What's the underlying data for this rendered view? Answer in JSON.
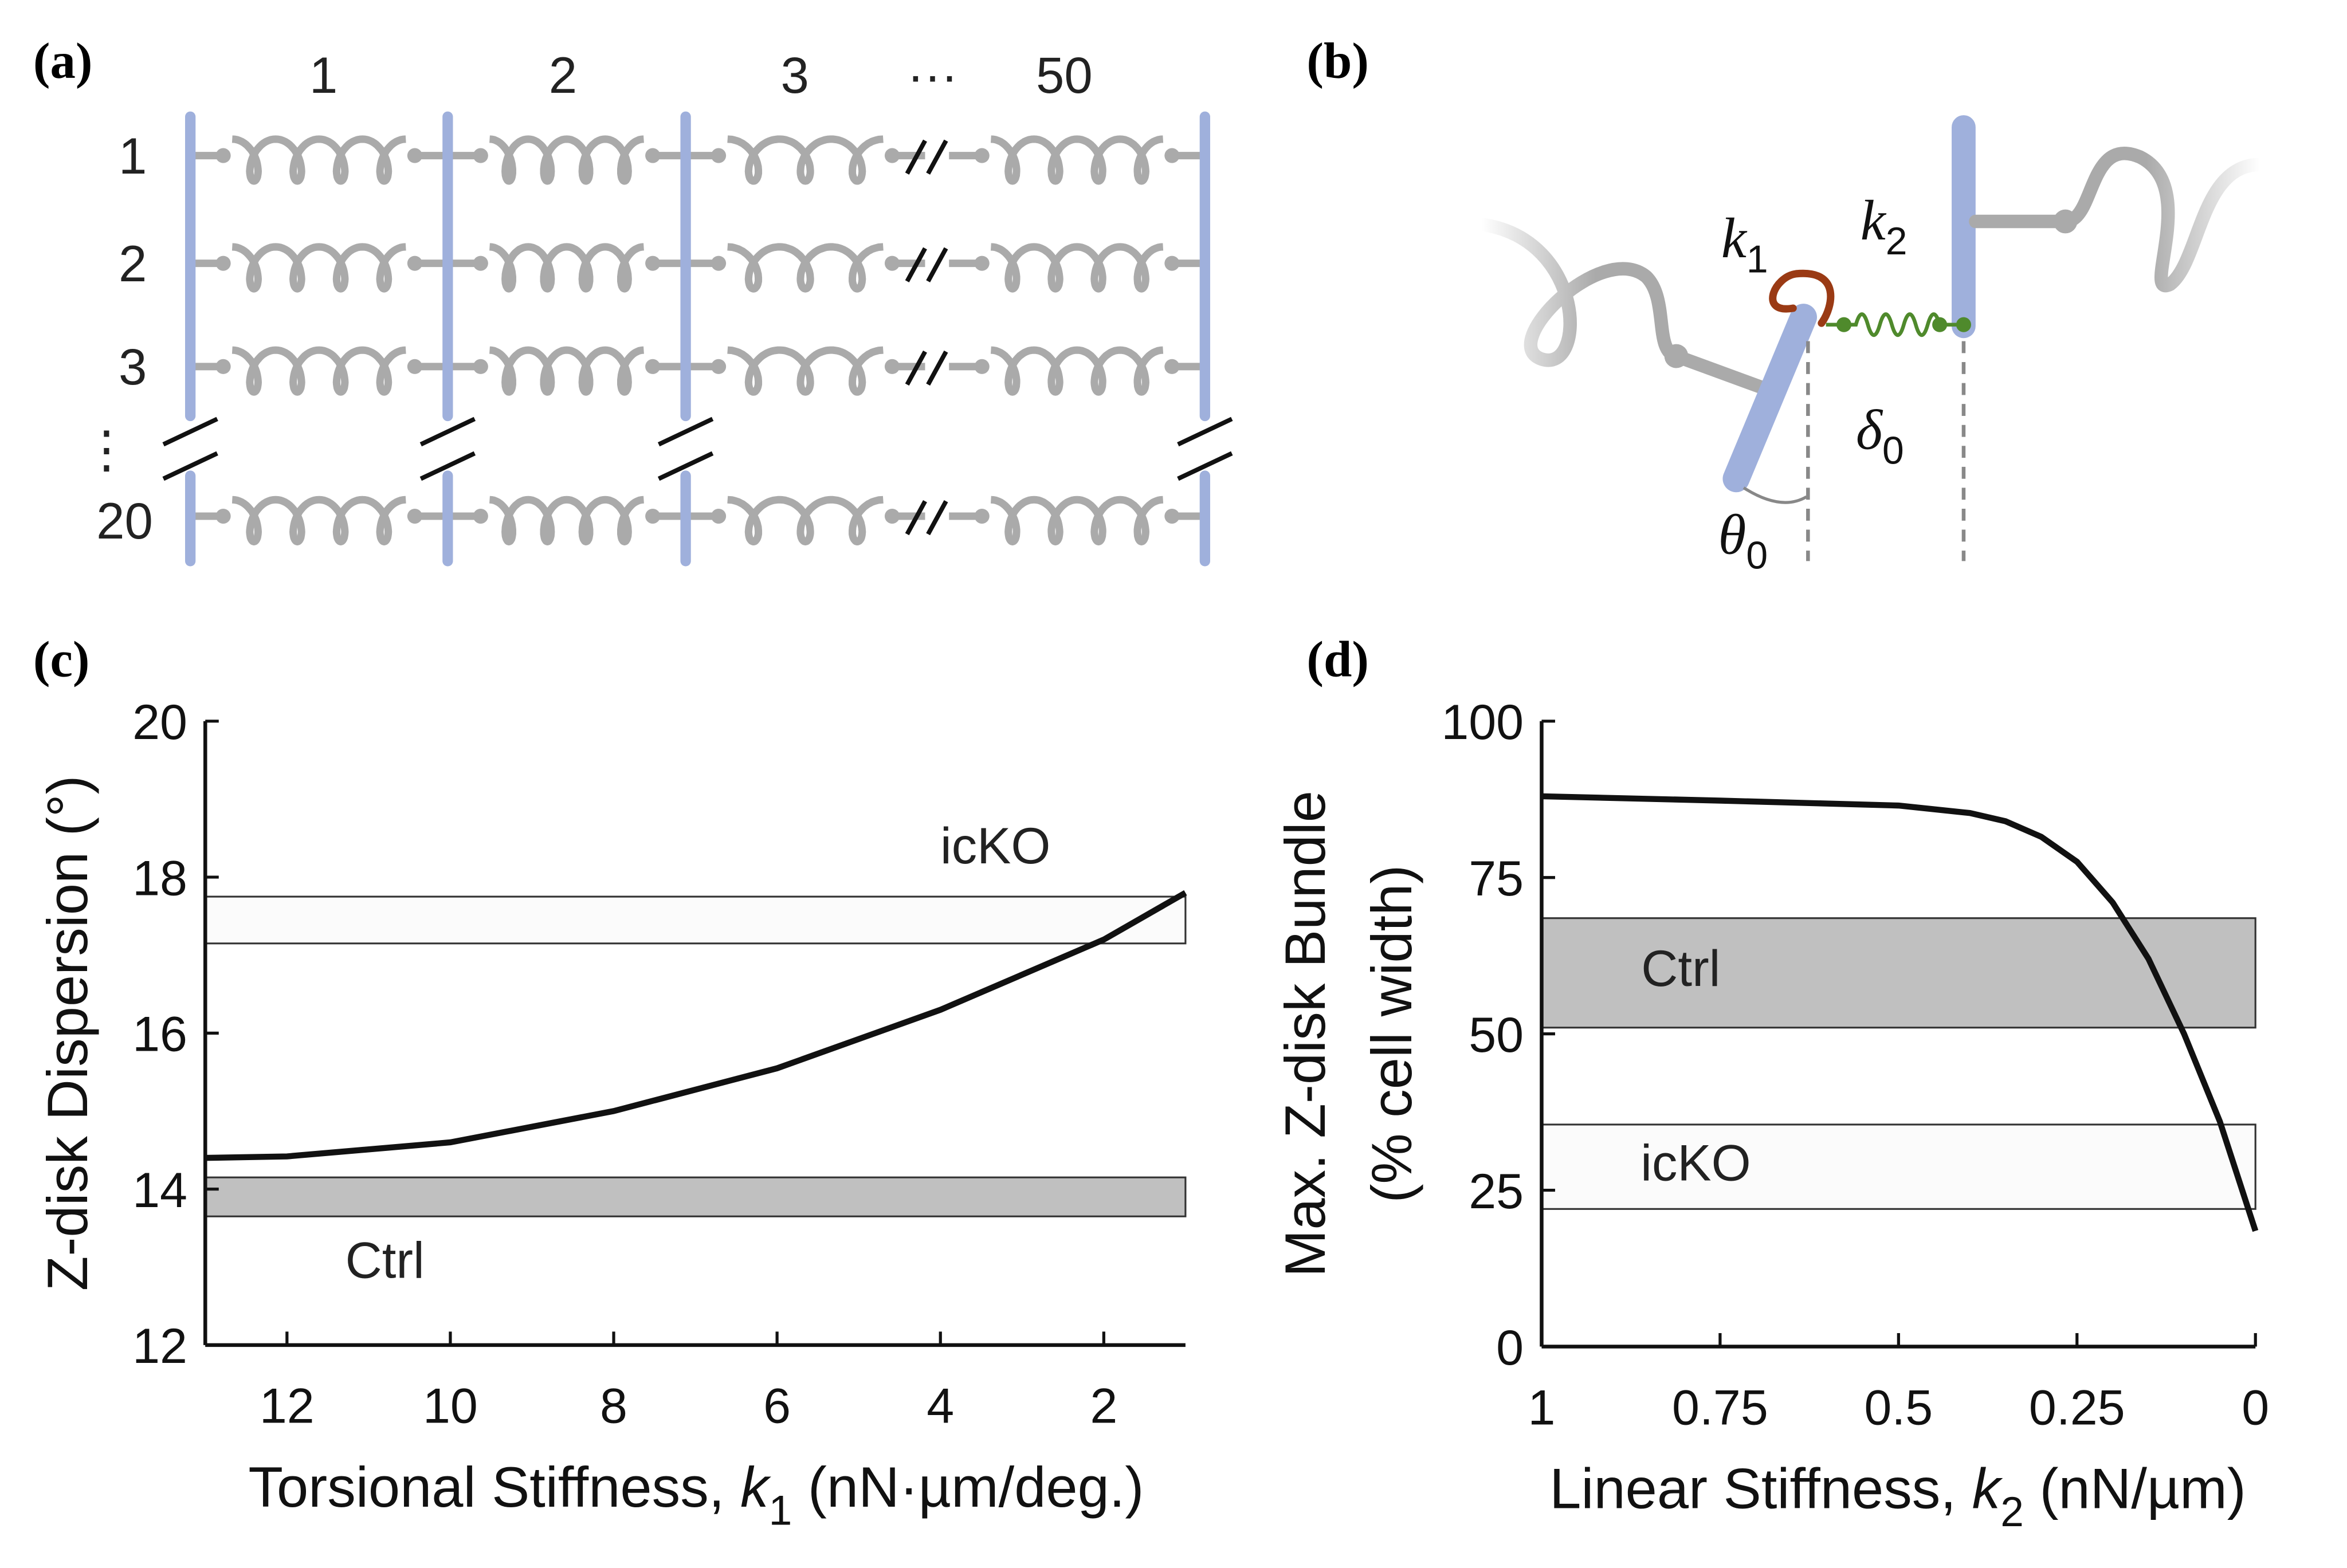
{
  "panels": {
    "a": "(a)",
    "b": "(b)",
    "c": "(c)",
    "d": "(d)"
  },
  "diagram_a": {
    "columns": [
      "1",
      "2",
      "3",
      "···",
      "50"
    ],
    "rows": [
      "1",
      "2",
      "3",
      "⋮",
      "20"
    ]
  },
  "diagram_b": {
    "labels": [
      {
        "symbol": "k",
        "sub": "1"
      },
      {
        "symbol": "k",
        "sub": "2"
      },
      {
        "symbol": "δ",
        "sub": "0"
      },
      {
        "symbol": "θ",
        "sub": "0"
      }
    ]
  },
  "chart_data": [
    {
      "type": "line",
      "ylabel": "Z-disk Dispersion (°)",
      "xlabel": [
        "Torsional Stiffness, ",
        "k",
        "1",
        " (nN·µm/deg.)"
      ],
      "x": [
        13,
        12,
        10,
        8,
        6,
        4,
        2,
        1
      ],
      "values": [
        14.4,
        14.42,
        14.6,
        15.0,
        15.55,
        16.3,
        17.2,
        17.8
      ],
      "color": "#111111",
      "bands": [
        {
          "name": "icKO",
          "range": [
            17.15,
            17.75
          ],
          "color": "#fbfbfb"
        },
        {
          "name": "Ctrl",
          "range": [
            13.65,
            14.15
          ],
          "color": "#c0c0c0"
        }
      ],
      "xlim": [
        13,
        1
      ],
      "xticks": [
        12,
        10,
        8,
        6,
        4,
        2
      ],
      "ylim": [
        12,
        20
      ],
      "yticks": [
        12,
        14,
        16,
        18,
        20
      ]
    },
    {
      "type": "line",
      "ylabel": [
        "Max. Z-disk Bundle",
        "(% cell width)"
      ],
      "xlabel": [
        "Linear Stiffness, ",
        "k",
        "2",
        " (nN/µm)"
      ],
      "x": [
        1,
        0.75,
        0.5,
        0.4,
        0.35,
        0.3,
        0.25,
        0.2,
        0.15,
        0.1,
        0.05,
        0
      ],
      "values": [
        88,
        87.3,
        86.5,
        85.3,
        84,
        81.5,
        77.5,
        71,
        62,
        50,
        36,
        18.5
      ],
      "color": "#111111",
      "bands": [
        {
          "name": "Ctrl",
          "range": [
            51,
            68.5
          ],
          "color": "#c0c0c0"
        },
        {
          "name": "icKO",
          "range": [
            22,
            35.5
          ],
          "color": "#fbfbfb"
        }
      ],
      "xlim": [
        1,
        0
      ],
      "xticks": [
        1,
        0.75,
        0.5,
        0.25,
        0
      ],
      "ylim": [
        0,
        100
      ],
      "yticks": [
        0,
        25,
        50,
        75,
        100
      ]
    }
  ]
}
